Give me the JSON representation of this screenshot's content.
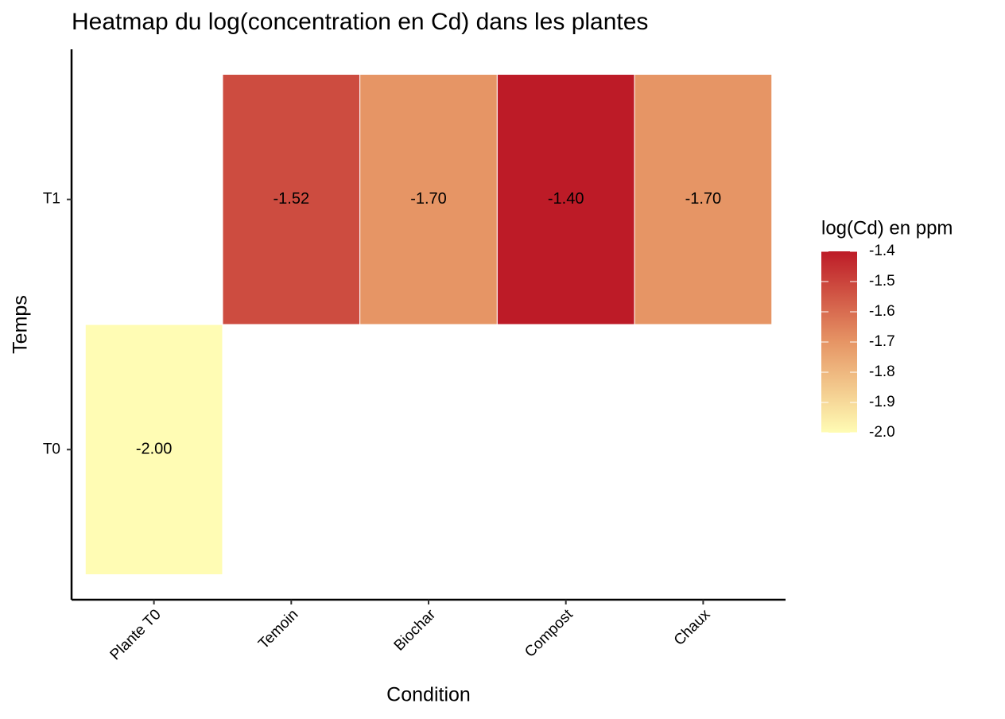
{
  "chart_data": {
    "type": "heatmap",
    "title": "Heatmap du log(concentration en Cd) dans les plantes",
    "x_label": "Condition",
    "y_label": "Temps",
    "x_categories": [
      "Plante T0",
      "Temoin",
      "Biochar",
      "Compost",
      "Chaux"
    ],
    "y_categories": [
      "T0",
      "T1"
    ],
    "values": [
      [
        -2.0,
        null,
        null,
        null,
        null
      ],
      [
        null,
        -1.52,
        -1.7,
        -1.4,
        -1.7
      ]
    ],
    "value_labels": [
      [
        "-2.00",
        null,
        null,
        null,
        null
      ],
      [
        null,
        "-1.52",
        "-1.70",
        "-1.40",
        "-1.70"
      ]
    ],
    "legend_title": "log(Cd) en ppm",
    "clim": [
      -2.0,
      -1.4
    ],
    "cticks": [
      {
        "value": -2,
        "label": "-2.0"
      },
      -1.9,
      -1.8,
      -1.7,
      -1.6,
      -1.5,
      -1.4
    ],
    "colorscale": [
      "#fffcb4",
      "#e69565",
      "#bd1b27"
    ],
    "legend": "right"
  }
}
